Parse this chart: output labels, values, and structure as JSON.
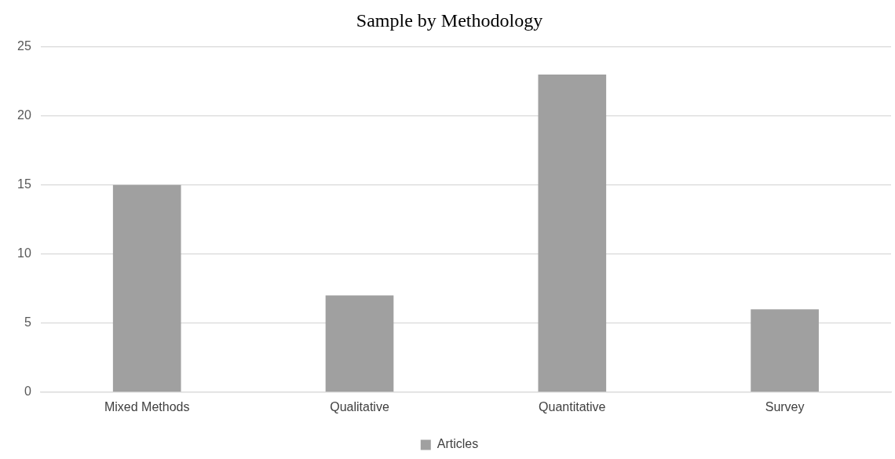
{
  "chart_data": {
    "type": "bar",
    "title": "Sample by Methodology",
    "categories": [
      "Mixed Methods",
      "Qualitative",
      "Quantitative",
      "Survey"
    ],
    "series": [
      {
        "name": "Articles",
        "color": "#a0a0a0",
        "values": [
          15,
          7,
          23,
          6
        ]
      }
    ],
    "ylim": [
      0,
      25
    ],
    "yticks": [
      0,
      5,
      10,
      15,
      20,
      25
    ],
    "grid": "y",
    "legend": "bottom"
  }
}
